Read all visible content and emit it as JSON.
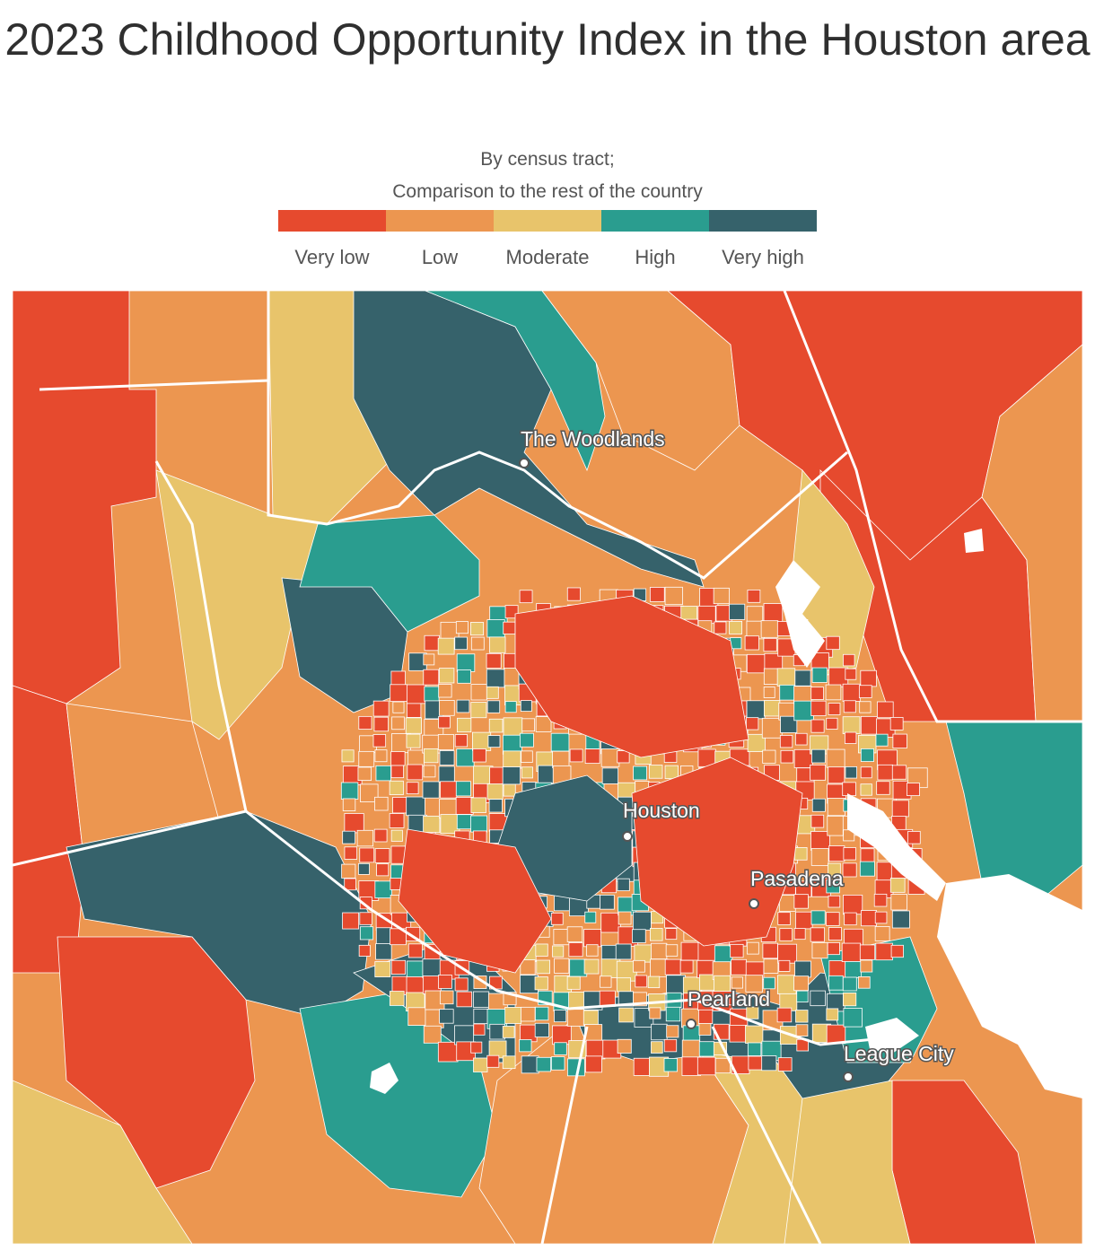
{
  "title": "2023 Childhood Opportunity Index in the Houston area",
  "subtitle_line1": "By census tract;",
  "subtitle_line2": "Comparison to the rest of the country",
  "colors": {
    "very_low": "#e64a2e",
    "low": "#ec9650",
    "moderate": "#e8c46b",
    "high": "#2a9d8f",
    "very_high": "#36626b",
    "water": "#ffffff"
  },
  "legend": [
    {
      "label": "Very low",
      "color": "#e64a2e"
    },
    {
      "label": "Low",
      "color": "#ec9650"
    },
    {
      "label": "Moderate",
      "color": "#e8c46b"
    },
    {
      "label": "High",
      "color": "#2a9d8f"
    },
    {
      "label": "Very high",
      "color": "#36626b"
    }
  ],
  "cities": [
    {
      "name": "The Woodlands"
    },
    {
      "name": "Houston"
    },
    {
      "name": "Pasadena"
    },
    {
      "name": "Pearland"
    },
    {
      "name": "League City"
    }
  ]
}
